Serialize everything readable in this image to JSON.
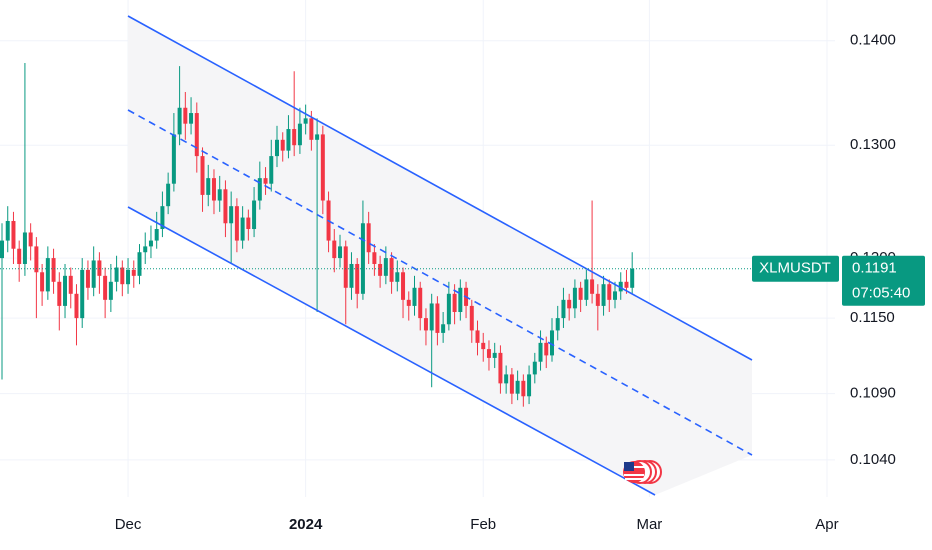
{
  "chart_data": {
    "type": "candlestick",
    "symbol": "XLMUSDT",
    "countdown": "07:05:40",
    "last_price": {
      "value": 0.1191,
      "label": "0.1191"
    },
    "log_scale": true,
    "grid": true,
    "up_color": "#089981",
    "down_color": "#f23645",
    "xlim": [
      -0.35,
      145.4
    ],
    "xticks": [
      {
        "value": 22,
        "label": "Dec"
      },
      {
        "value": 53,
        "label": "2024"
      },
      {
        "value": 84,
        "label": "Feb"
      },
      {
        "value": 113,
        "label": "Mar"
      },
      {
        "value": 144,
        "label": "Apr"
      }
    ],
    "ylim": [
      0.1013,
      0.1441
    ],
    "yticks": [
      {
        "value": 0.14,
        "label": "0.1400"
      },
      {
        "value": 0.13,
        "label": "0.1300"
      },
      {
        "value": 0.12,
        "label": "0.1200"
      },
      {
        "value": 0.115,
        "label": "0.1150"
      },
      {
        "value": 0.109,
        "label": "0.1090"
      },
      {
        "value": 0.104,
        "label": "0.1040"
      }
    ],
    "open": [
      0.12,
      0.1215,
      0.1232,
      0.1208,
      0.1195,
      0.1222,
      0.121,
      0.1188,
      0.1172,
      0.12,
      0.118,
      0.116,
      0.1185,
      0.117,
      0.115,
      0.119,
      0.1175,
      0.1198,
      0.1185,
      0.1165,
      0.118,
      0.1192,
      0.1178,
      0.119,
      0.1185,
      0.1205,
      0.121,
      0.1215,
      0.1225,
      0.1245,
      0.1265,
      0.131,
      0.1335,
      0.132,
      0.133,
      0.129,
      0.1255,
      0.127,
      0.125,
      0.126,
      0.123,
      0.1245,
      0.1215,
      0.1235,
      0.1225,
      0.125,
      0.127,
      0.1265,
      0.129,
      0.1305,
      0.1295,
      0.1315,
      0.13,
      0.132,
      0.1325,
      0.1305,
      0.131,
      0.125,
      0.1215,
      0.12,
      0.121,
      0.1175,
      0.1195,
      0.117,
      0.123,
      0.1205,
      0.1195,
      0.1185,
      0.12,
      0.118,
      0.1188,
      0.1165,
      0.116,
      0.1175,
      0.115,
      0.114,
      0.1162,
      0.1138,
      0.1145,
      0.117,
      0.1155,
      0.1175,
      0.116,
      0.114,
      0.113,
      0.1125,
      0.1118,
      0.1122,
      0.1098,
      0.1105,
      0.109,
      0.11,
      0.1088,
      0.1105,
      0.1115,
      0.113,
      0.112,
      0.114,
      0.115,
      0.1165,
      0.1158,
      0.1175,
      0.1165,
      0.1182,
      0.117,
      0.116,
      0.1178,
      0.1165,
      0.1172,
      0.118,
      0.1175
    ],
    "high": [
      0.123,
      0.1245,
      0.124,
      0.1215,
      0.1378,
      0.123,
      0.1218,
      0.1195,
      0.121,
      0.1208,
      0.1188,
      0.1195,
      0.1192,
      0.1178,
      0.12,
      0.1198,
      0.121,
      0.1205,
      0.1192,
      0.1195,
      0.1202,
      0.1198,
      0.12,
      0.1198,
      0.1212,
      0.1222,
      0.1228,
      0.124,
      0.1258,
      0.1275,
      0.133,
      0.1375,
      0.135,
      0.1345,
      0.134,
      0.1298,
      0.1282,
      0.1278,
      0.1272,
      0.1268,
      0.1258,
      0.1252,
      0.1245,
      0.1242,
      0.1262,
      0.1285,
      0.128,
      0.1305,
      0.1318,
      0.1312,
      0.1328,
      0.137,
      0.1335,
      0.1338,
      0.1332,
      0.1325,
      0.1318,
      0.1258,
      0.1225,
      0.122,
      0.1215,
      0.1205,
      0.12,
      0.125,
      0.124,
      0.1212,
      0.1202,
      0.121,
      0.1205,
      0.1198,
      0.1192,
      0.1172,
      0.1185,
      0.118,
      0.1158,
      0.117,
      0.1168,
      0.1155,
      0.118,
      0.1178,
      0.1182,
      0.118,
      0.1165,
      0.1148,
      0.1138,
      0.1132,
      0.113,
      0.1128,
      0.1112,
      0.111,
      0.1108,
      0.1105,
      0.1112,
      0.1122,
      0.114,
      0.1135,
      0.115,
      0.116,
      0.1175,
      0.117,
      0.1182,
      0.118,
      0.119,
      0.125,
      0.1178,
      0.1185,
      0.1182,
      0.118,
      0.1188,
      0.119,
      0.1205
    ],
    "low": [
      0.1101,
      0.1205,
      0.1195,
      0.118,
      0.1185,
      0.1198,
      0.115,
      0.116,
      0.1165,
      0.117,
      0.114,
      0.115,
      0.1158,
      0.1128,
      0.1142,
      0.1165,
      0.1168,
      0.117,
      0.115,
      0.1155,
      0.1172,
      0.1168,
      0.117,
      0.1175,
      0.1178,
      0.1195,
      0.12,
      0.1208,
      0.1218,
      0.1238,
      0.1258,
      0.13,
      0.1305,
      0.131,
      0.1275,
      0.124,
      0.1245,
      0.1238,
      0.124,
      0.1218,
      0.1195,
      0.1205,
      0.1208,
      0.1215,
      0.1218,
      0.1242,
      0.1255,
      0.1258,
      0.128,
      0.1285,
      0.1288,
      0.129,
      0.1292,
      0.131,
      0.1295,
      0.1155,
      0.1238,
      0.1205,
      0.1188,
      0.1192,
      0.1145,
      0.1165,
      0.1158,
      0.1165,
      0.1195,
      0.1185,
      0.1175,
      0.1178,
      0.117,
      0.1172,
      0.115,
      0.1148,
      0.1152,
      0.114,
      0.1128,
      0.1095,
      0.1128,
      0.113,
      0.114,
      0.1145,
      0.1148,
      0.115,
      0.113,
      0.112,
      0.1115,
      0.1108,
      0.111,
      0.109,
      0.109,
      0.1082,
      0.1085,
      0.108,
      0.1082,
      0.1098,
      0.1108,
      0.111,
      0.1115,
      0.1132,
      0.1142,
      0.1148,
      0.115,
      0.1155,
      0.116,
      0.1162,
      0.114,
      0.1152,
      0.1155,
      0.1158,
      0.1165,
      0.117,
      0.117
    ],
    "close": [
      0.1215,
      0.1232,
      0.1208,
      0.1195,
      0.1222,
      0.121,
      0.1188,
      0.1172,
      0.12,
      0.118,
      0.116,
      0.1185,
      0.117,
      0.115,
      0.119,
      0.1175,
      0.1198,
      0.1185,
      0.1165,
      0.118,
      0.1192,
      0.1178,
      0.119,
      0.1185,
      0.1205,
      0.121,
      0.1215,
      0.1225,
      0.1245,
      0.1265,
      0.131,
      0.1335,
      0.132,
      0.133,
      0.129,
      0.1255,
      0.127,
      0.125,
      0.126,
      0.123,
      0.1245,
      0.1215,
      0.1235,
      0.1225,
      0.125,
      0.127,
      0.1265,
      0.129,
      0.1305,
      0.1295,
      0.1315,
      0.13,
      0.132,
      0.1325,
      0.1305,
      0.131,
      0.125,
      0.1215,
      0.12,
      0.121,
      0.1175,
      0.1195,
      0.117,
      0.123,
      0.1205,
      0.1195,
      0.1185,
      0.12,
      0.118,
      0.1188,
      0.1165,
      0.116,
      0.1175,
      0.115,
      0.114,
      0.1162,
      0.1138,
      0.1145,
      0.117,
      0.1155,
      0.1175,
      0.116,
      0.114,
      0.113,
      0.1125,
      0.1118,
      0.1122,
      0.1098,
      0.1105,
      0.109,
      0.11,
      0.1088,
      0.1105,
      0.1115,
      0.113,
      0.112,
      0.114,
      0.115,
      0.1165,
      0.1158,
      0.1175,
      0.1165,
      0.1182,
      0.117,
      0.116,
      0.1178,
      0.1165,
      0.1172,
      0.118,
      0.1175,
      0.1191
    ]
  }
}
